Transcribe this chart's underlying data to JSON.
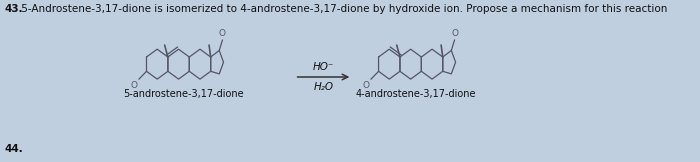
{
  "background_color": "#bfcfe0",
  "question_number": "43.",
  "question_text": " 5-Androstene-3,17-dione is isomerized to 4-androstene-3,17-dione by hydroxide ion. Propose a mechanism for this reaction",
  "reagent_top": "HO⁻",
  "reagent_bot": "H₂O",
  "label_left": "5-androstene-3,17-dione",
  "label_right": "4-androstene-3,17-dione",
  "footer_text": "44.",
  "title_fontsize": 7.5,
  "label_fontsize": 7.0,
  "struct_color": "#555566",
  "text_color": "#111111",
  "arrow_color": "#333333"
}
